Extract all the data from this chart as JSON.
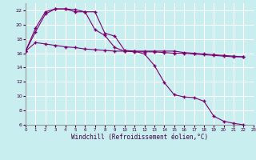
{
  "xlabel": "Windchill (Refroidissement éolien,°C)",
  "bg_color": "#c8eef0",
  "grid_color": "#ffffff",
  "line_color": "#7b0070",
  "line1_x": [
    0,
    1,
    2,
    3,
    4,
    5,
    6,
    7,
    8,
    9,
    10,
    11,
    12,
    13,
    14,
    15,
    16,
    17,
    18,
    19,
    20,
    21,
    22
  ],
  "line1_y": [
    16.3,
    17.5,
    17.3,
    17.1,
    16.9,
    16.8,
    16.6,
    16.5,
    16.4,
    16.3,
    16.3,
    16.2,
    16.2,
    16.2,
    16.1,
    16.0,
    16.0,
    15.9,
    15.8,
    15.7,
    15.6,
    15.5,
    15.5
  ],
  "line2_x": [
    0,
    1,
    2,
    3,
    4,
    5,
    6,
    7,
    8,
    9,
    10,
    11,
    12,
    13,
    14,
    15,
    16,
    17,
    18,
    19,
    20,
    21,
    22
  ],
  "line2_y": [
    16.3,
    19.0,
    21.5,
    22.2,
    22.2,
    21.8,
    21.8,
    19.3,
    18.5,
    16.8,
    16.3,
    16.3,
    15.9,
    14.3,
    11.9,
    10.2,
    9.9,
    9.8,
    9.3,
    7.2,
    6.5,
    6.2,
    6.0
  ],
  "line3_x": [
    0,
    1,
    2,
    3,
    4,
    5,
    6,
    7,
    8,
    9,
    10,
    11,
    12,
    13,
    14,
    15,
    16,
    17,
    18,
    19,
    20,
    21,
    22
  ],
  "line3_y": [
    16.3,
    19.5,
    21.8,
    22.2,
    22.2,
    22.1,
    21.8,
    21.8,
    18.8,
    18.4,
    16.4,
    16.3,
    16.3,
    16.3,
    16.3,
    16.3,
    16.1,
    16.0,
    15.9,
    15.8,
    15.7,
    15.6,
    15.5
  ],
  "xlim": [
    0,
    23
  ],
  "ylim": [
    6,
    23
  ],
  "yticks": [
    6,
    8,
    10,
    12,
    14,
    16,
    18,
    20,
    22
  ],
  "xticks": [
    0,
    1,
    2,
    3,
    4,
    5,
    6,
    7,
    8,
    9,
    10,
    11,
    12,
    13,
    14,
    15,
    16,
    17,
    18,
    19,
    20,
    21,
    22,
    23
  ]
}
